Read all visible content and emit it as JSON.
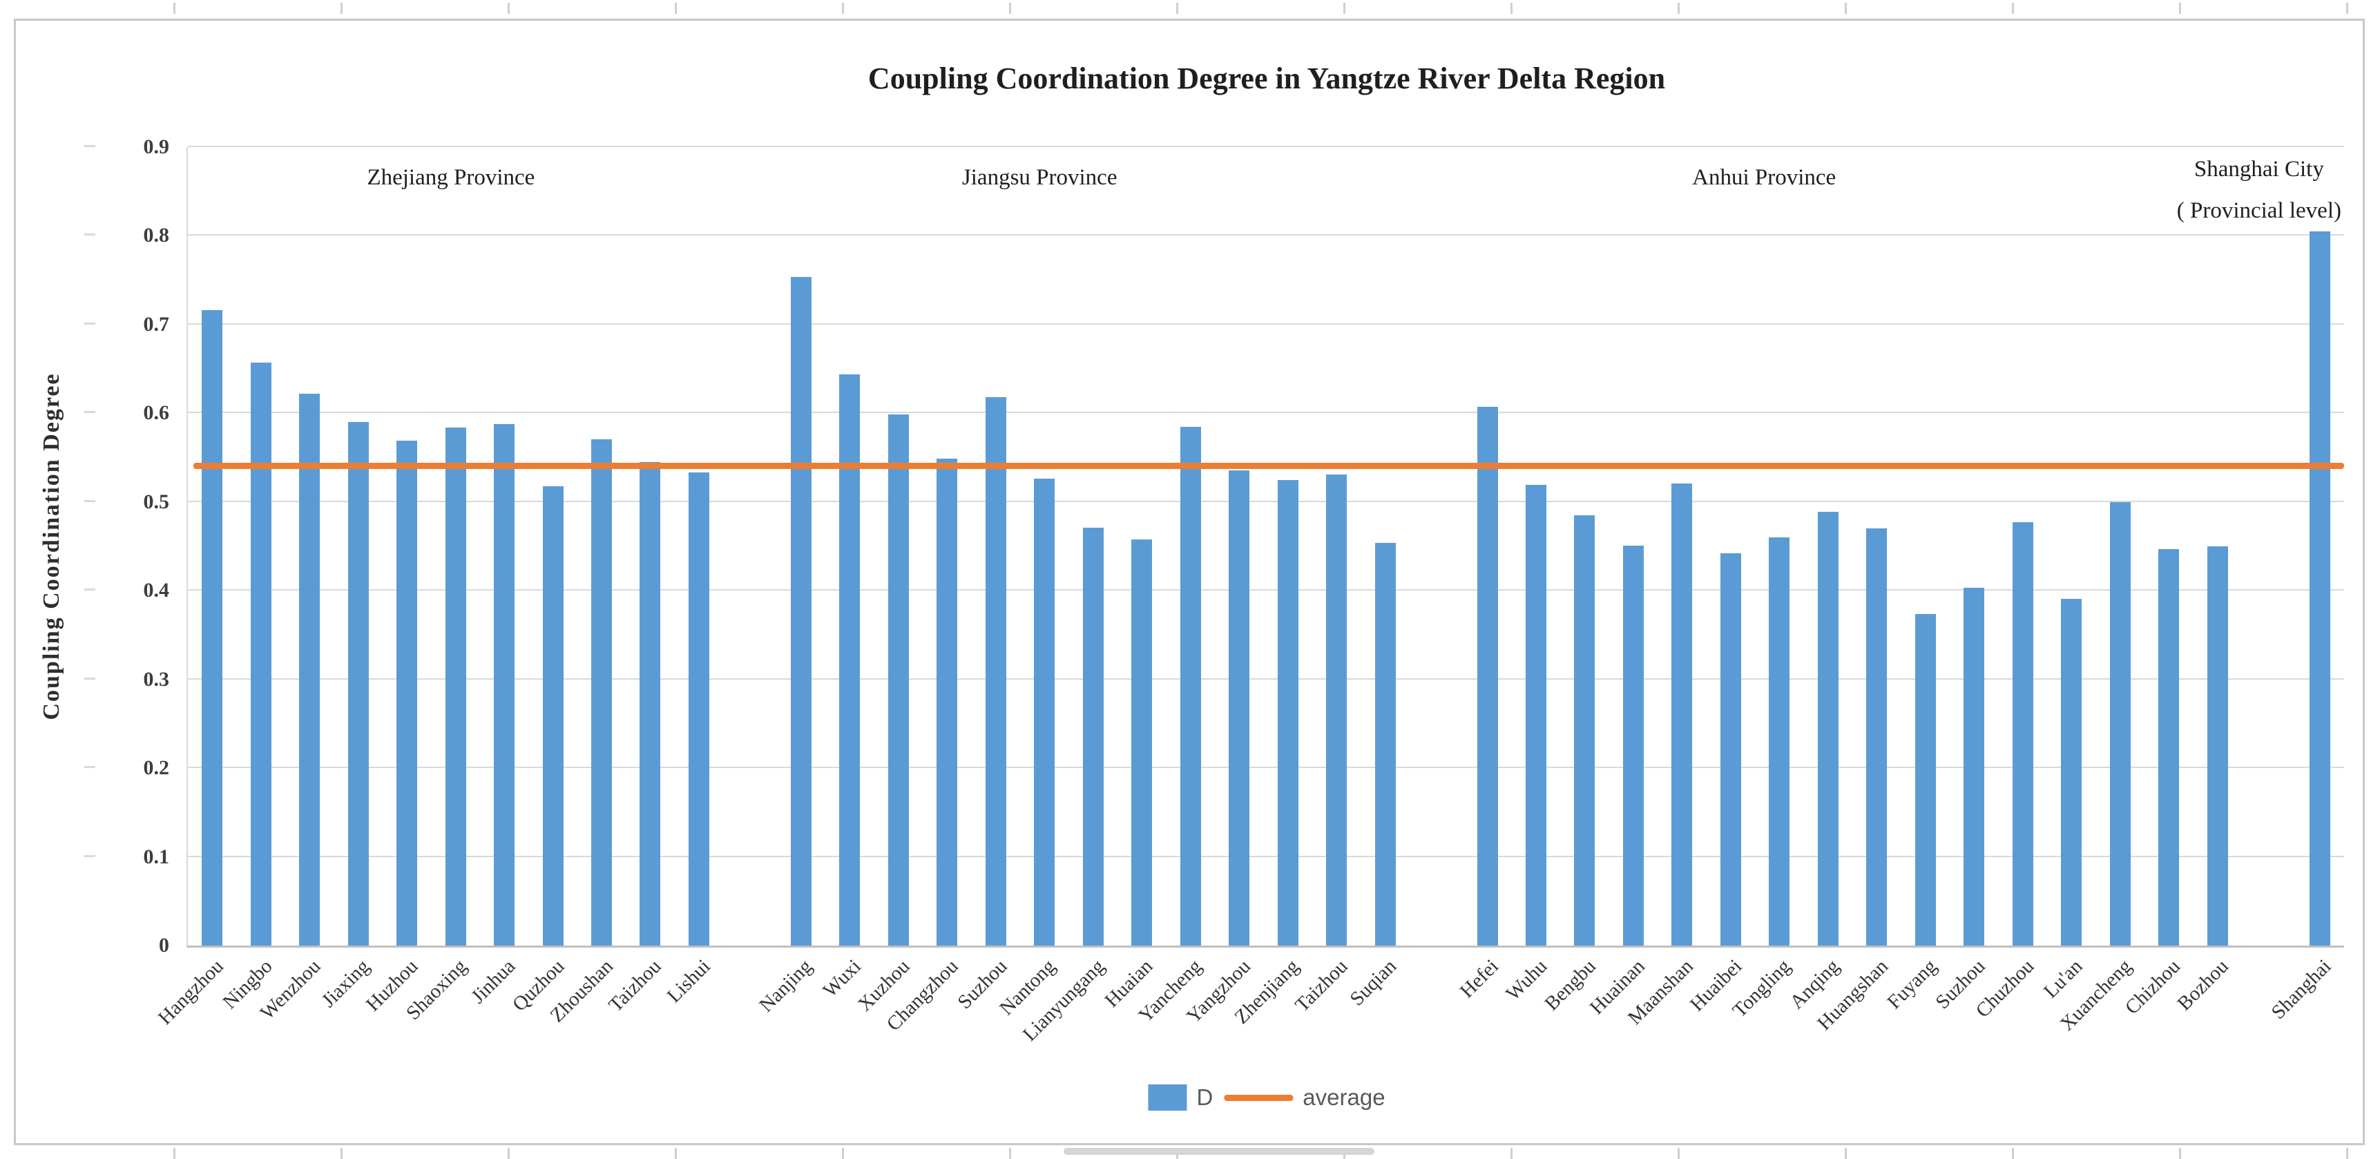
{
  "chart_data": {
    "type": "bar",
    "title": "Coupling Coordination Degree in Yangtze River Delta Region",
    "ylabel": "Coupling Coordination Degree",
    "ylim": [
      0,
      0.9
    ],
    "yticks": [
      "0",
      "0.1",
      "0.2",
      "0.3",
      "0.4",
      "0.5",
      "0.6",
      "0.7",
      "0.8",
      "0.9"
    ],
    "grid": true,
    "legend_position": "bottom",
    "bar_color": "#5b9bd5",
    "series_label": "D",
    "average_line": {
      "label": "average",
      "value": 0.54,
      "color": "#ed7d31"
    },
    "groups": [
      {
        "annotation": "Zhejiang Province",
        "categories": [
          "Hangzhou",
          "Ningbo",
          "Wenzhou",
          "Jiaxing",
          "Huzhou",
          "Shaoxing",
          "Jinhua",
          "Quzhou",
          "Zhoushan",
          "Taizhou",
          "Lishui"
        ],
        "values": [
          0.716,
          0.657,
          0.622,
          0.59,
          0.569,
          0.584,
          0.588,
          0.518,
          0.571,
          0.545,
          0.533
        ]
      },
      {
        "annotation": "Jiangsu Province",
        "categories": [
          "Nanjing",
          "Wuxi",
          "Xuzhou",
          "Changzhou",
          "Suzhou",
          "Nantong",
          "Lianyungang",
          "Huaian",
          "Yancheng",
          "Yangzhou",
          "Zhenjiang",
          "Taizhou",
          "Suqian"
        ],
        "values": [
          0.754,
          0.644,
          0.599,
          0.549,
          0.618,
          0.526,
          0.471,
          0.458,
          0.585,
          0.536,
          0.525,
          0.531,
          0.454
        ]
      },
      {
        "annotation": "Anhui Province",
        "categories": [
          "Hefei",
          "Wuhu",
          "Bengbu",
          "Huainan",
          "Maanshan",
          "Huaibei",
          "Tongling",
          "Anqing",
          "Huangshan",
          "Fuyang",
          "Suzhou",
          "Chuzhou",
          "Lu'an",
          "Xuancheng",
          "Chizhou",
          "Bozhou"
        ],
        "values": [
          0.607,
          0.519,
          0.485,
          0.451,
          0.521,
          0.442,
          0.46,
          0.489,
          0.47,
          0.374,
          0.403,
          0.477,
          0.391,
          0.5,
          0.447,
          0.45
        ]
      },
      {
        "annotation": "Shanghai City ( Provincial level)",
        "annotation_lines": [
          "Shanghai City",
          "( Provincial level)"
        ],
        "categories": [
          "Shanghai"
        ],
        "values": [
          0.805
        ]
      }
    ],
    "legend": [
      {
        "label": "D",
        "swatch": "bar",
        "color": "#5b9bd5"
      },
      {
        "label": "average",
        "swatch": "line",
        "color": "#ed7d31"
      }
    ]
  }
}
